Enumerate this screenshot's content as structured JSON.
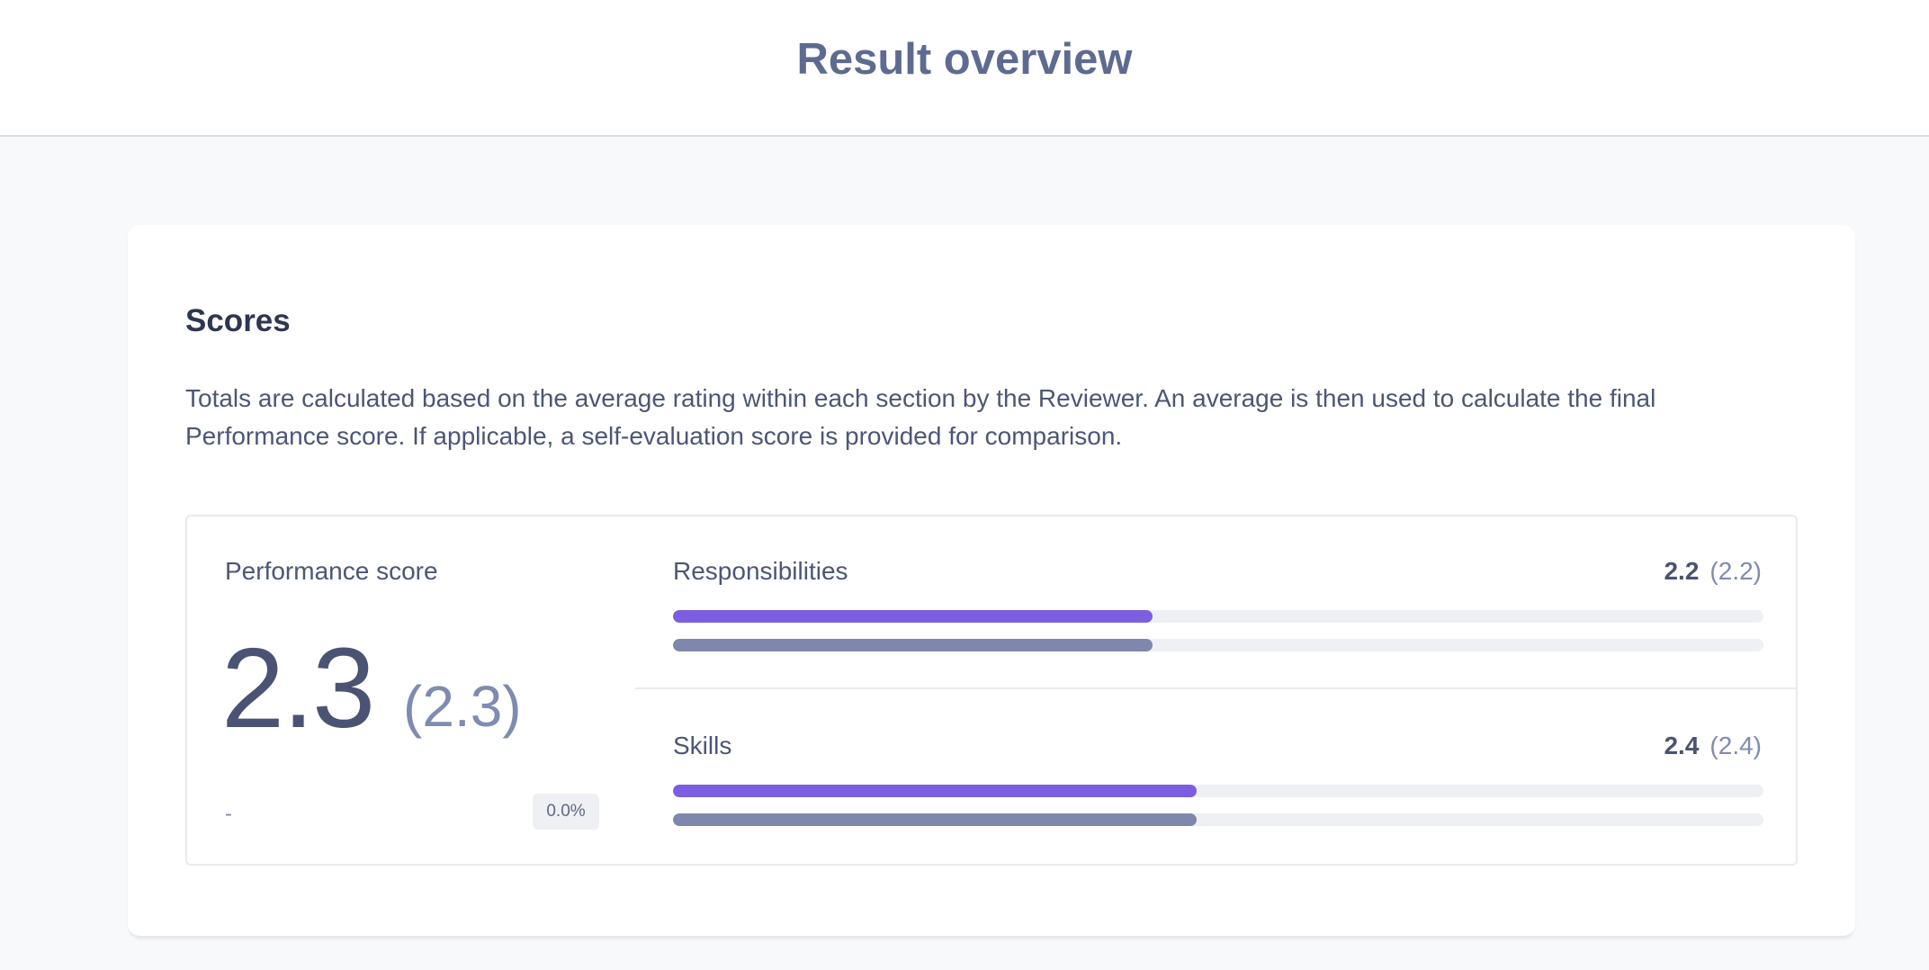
{
  "header": {
    "title": "Result overview"
  },
  "scores": {
    "title": "Scores",
    "description": "Totals are calculated based on the average rating within each section by the Reviewer. An average is then used to calculate the final Performance score. If applicable, a self-evaluation score is provided for comparison.",
    "performance": {
      "label": "Performance score",
      "value": "2.3",
      "self_value": "(2.3)",
      "change": "-",
      "change_percent": "0.0%"
    },
    "sections": [
      {
        "label": "Responsibilities",
        "score": "2.2",
        "self_score": "(2.2)",
        "reviewer_fraction": 0.44,
        "self_fraction": 0.44
      },
      {
        "label": "Skills",
        "score": "2.4",
        "self_score": "(2.4)",
        "reviewer_fraction": 0.48,
        "self_fraction": 0.48
      }
    ]
  },
  "colors": {
    "reviewer_bar": "#7c5ee0",
    "self_bar": "#7e88ac",
    "track": "#eff0f3"
  }
}
